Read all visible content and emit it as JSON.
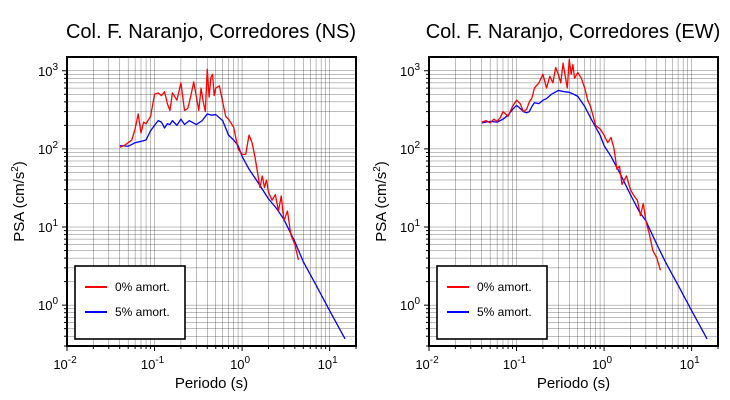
{
  "chart_data": [
    {
      "type": "line",
      "title": "Col. F. Naranjo, Corredores (NS)",
      "xlabel": "Periodo (s)",
      "ylabel": "PSA (cm/s2)",
      "x_scale": "log",
      "y_scale": "log",
      "xlim": [
        0.01,
        20
      ],
      "ylim": [
        0.3,
        1500
      ],
      "grid": true,
      "legend_position": "bottom-left",
      "x_tick_labels": [
        "10-2",
        "10-1",
        "100",
        "101"
      ],
      "y_tick_labels": [
        "100",
        "101",
        "102",
        "103"
      ],
      "series": [
        {
          "name": "0% amort.",
          "color": "#ff0000",
          "x": [
            0.04,
            0.045,
            0.05,
            0.055,
            0.06,
            0.065,
            0.07,
            0.075,
            0.08,
            0.09,
            0.1,
            0.11,
            0.12,
            0.13,
            0.14,
            0.15,
            0.16,
            0.18,
            0.2,
            0.22,
            0.24,
            0.26,
            0.28,
            0.3,
            0.32,
            0.34,
            0.36,
            0.38,
            0.4,
            0.42,
            0.44,
            0.46,
            0.48,
            0.5,
            0.55,
            0.6,
            0.65,
            0.7,
            0.8,
            0.9,
            1.0,
            1.1,
            1.2,
            1.3,
            1.4,
            1.5,
            1.6,
            1.7,
            1.8,
            1.9,
            2.0,
            2.2,
            2.4,
            2.6,
            2.8,
            3.0,
            3.3,
            3.6,
            4.0,
            4.4
          ],
          "y": [
            105,
            110,
            120,
            130,
            180,
            280,
            160,
            220,
            210,
            260,
            500,
            520,
            480,
            540,
            380,
            310,
            520,
            420,
            700,
            310,
            330,
            480,
            720,
            470,
            310,
            600,
            400,
            300,
            1050,
            460,
            820,
            900,
            480,
            600,
            640,
            400,
            260,
            240,
            190,
            100,
            85,
            85,
            150,
            120,
            80,
            50,
            32,
            45,
            32,
            40,
            28,
            22,
            26,
            16,
            25,
            12,
            16,
            8,
            6,
            3.8
          ]
        },
        {
          "name": "5% amort.",
          "color": "#0000ff",
          "x": [
            0.04,
            0.05,
            0.06,
            0.07,
            0.08,
            0.09,
            0.1,
            0.11,
            0.12,
            0.13,
            0.14,
            0.15,
            0.16,
            0.18,
            0.2,
            0.22,
            0.25,
            0.3,
            0.35,
            0.4,
            0.45,
            0.5,
            0.6,
            0.7,
            0.8,
            0.9,
            1.0,
            1.2,
            1.5,
            2.0,
            2.5,
            3.0,
            4.0,
            5.0,
            7.0,
            10.0,
            15.0
          ],
          "y": [
            110,
            108,
            120,
            125,
            130,
            170,
            200,
            230,
            220,
            185,
            210,
            205,
            230,
            200,
            240,
            205,
            230,
            205,
            230,
            280,
            270,
            275,
            230,
            150,
            130,
            110,
            80,
            55,
            38,
            23,
            17,
            12.5,
            6.5,
            3.6,
            1.8,
            0.85,
            0.37
          ]
        }
      ]
    },
    {
      "type": "line",
      "title": "Col. F. Naranjo, Corredores (EW)",
      "xlabel": "Periodo (s)",
      "ylabel": "PSA (cm/s2)",
      "x_scale": "log",
      "y_scale": "log",
      "xlim": [
        0.01,
        20
      ],
      "ylim": [
        0.3,
        1500
      ],
      "grid": true,
      "legend_position": "bottom-left",
      "x_tick_labels": [
        "10-2",
        "10-1",
        "100",
        "101"
      ],
      "y_tick_labels": [
        "100",
        "101",
        "102",
        "103"
      ],
      "series": [
        {
          "name": "0% amort.",
          "color": "#ff0000",
          "x": [
            0.04,
            0.045,
            0.05,
            0.055,
            0.06,
            0.065,
            0.07,
            0.08,
            0.09,
            0.1,
            0.11,
            0.12,
            0.13,
            0.14,
            0.15,
            0.16,
            0.18,
            0.2,
            0.22,
            0.24,
            0.26,
            0.28,
            0.3,
            0.32,
            0.34,
            0.36,
            0.38,
            0.4,
            0.42,
            0.44,
            0.46,
            0.5,
            0.55,
            0.6,
            0.65,
            0.7,
            0.8,
            0.9,
            1.0,
            1.1,
            1.2,
            1.3,
            1.4,
            1.5,
            1.6,
            1.8,
            2.0,
            2.2,
            2.4,
            2.6,
            2.8,
            3.0,
            3.3,
            3.6,
            4.0,
            4.4
          ],
          "y": [
            220,
            230,
            215,
            240,
            225,
            250,
            300,
            260,
            350,
            420,
            380,
            300,
            320,
            400,
            450,
            600,
            700,
            900,
            600,
            850,
            700,
            1100,
            900,
            700,
            1250,
            850,
            600,
            1400,
            900,
            1200,
            800,
            950,
            800,
            600,
            420,
            350,
            200,
            180,
            150,
            120,
            140,
            100,
            55,
            60,
            35,
            45,
            30,
            25,
            22,
            14,
            20,
            12,
            8,
            5,
            4,
            2.8
          ]
        },
        {
          "name": "5% amort.",
          "color": "#0000ff",
          "x": [
            0.04,
            0.05,
            0.06,
            0.07,
            0.08,
            0.09,
            0.1,
            0.11,
            0.12,
            0.13,
            0.14,
            0.15,
            0.16,
            0.18,
            0.2,
            0.22,
            0.25,
            0.3,
            0.35,
            0.4,
            0.45,
            0.5,
            0.6,
            0.7,
            0.8,
            0.9,
            1.0,
            1.2,
            1.5,
            2.0,
            2.5,
            3.0,
            4.0,
            5.0,
            7.0,
            10.0,
            15.0
          ],
          "y": [
            215,
            225,
            220,
            240,
            270,
            320,
            360,
            330,
            300,
            290,
            300,
            350,
            390,
            380,
            420,
            440,
            500,
            560,
            540,
            530,
            500,
            470,
            350,
            250,
            190,
            150,
            110,
            80,
            50,
            26,
            16,
            12,
            6,
            3.6,
            1.8,
            0.85,
            0.37
          ]
        }
      ]
    }
  ]
}
